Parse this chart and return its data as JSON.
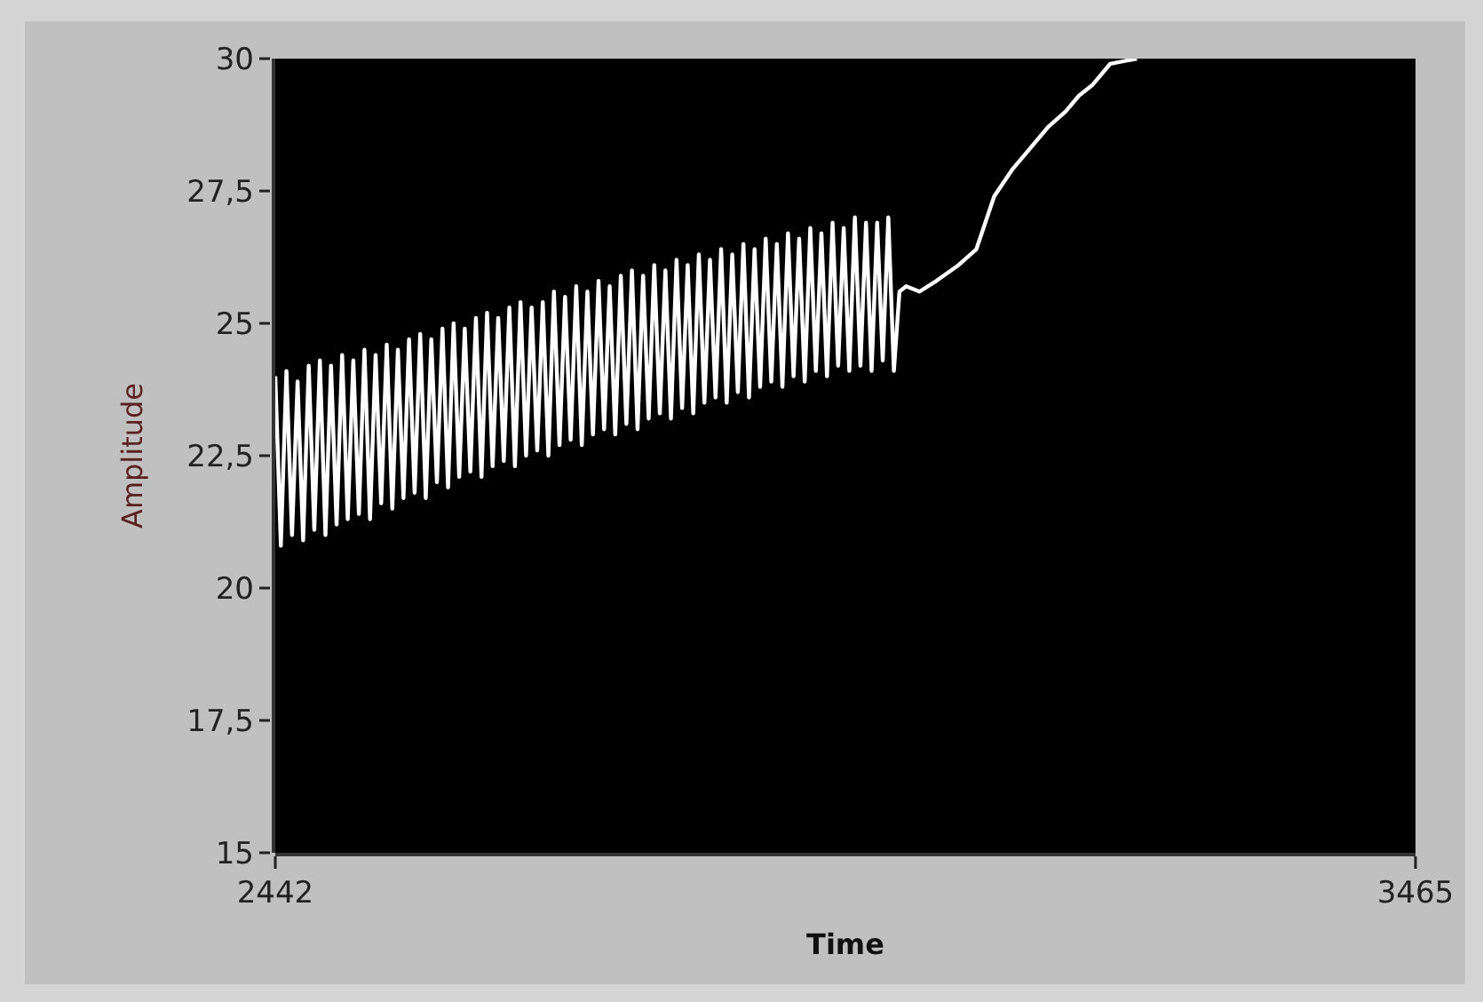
{
  "chart_data": {
    "type": "line",
    "xlabel": "Time",
    "ylabel": "Amplitude",
    "xlim": [
      2442,
      3465
    ],
    "xticks": [
      2442,
      3465
    ],
    "ylim": [
      15,
      30
    ],
    "yticks": [
      15,
      {
        "value": 17.5,
        "label": "17,5"
      },
      20,
      {
        "value": 22.5,
        "label": "22,5"
      },
      25,
      {
        "value": 27.5,
        "label": "27,5"
      },
      30
    ],
    "grid": false,
    "series": [
      {
        "color": "#ffffff",
        "x": [
          2442,
          2447,
          2452,
          2457,
          2462,
          2467,
          2472,
          2477,
          2482,
          2487,
          2492,
          2497,
          2502,
          2507,
          2512,
          2517,
          2522,
          2527,
          2532,
          2537,
          2542,
          2547,
          2552,
          2557,
          2562,
          2567,
          2572,
          2577,
          2582,
          2587,
          2592,
          2597,
          2602,
          2607,
          2612,
          2617,
          2622,
          2627,
          2632,
          2637,
          2642,
          2647,
          2652,
          2657,
          2662,
          2667,
          2672,
          2677,
          2682,
          2687,
          2692,
          2697,
          2702,
          2707,
          2712,
          2717,
          2722,
          2727,
          2732,
          2737,
          2742,
          2747,
          2752,
          2757,
          2762,
          2767,
          2772,
          2777,
          2782,
          2787,
          2792,
          2797,
          2802,
          2807,
          2812,
          2817,
          2822,
          2827,
          2832,
          2837,
          2842,
          2847,
          2852,
          2857,
          2862,
          2867,
          2872,
          2877,
          2882,
          2887,
          2892,
          2897,
          2902,
          2907,
          2912,
          2917,
          2922,
          2927,
          2932,
          2937,
          2942,
          2947,
          2952,
          2957,
          2962,
          2967,
          2972,
          2977,
          2982,
          2987,
          2992,
          2997,
          3002,
          3008,
          3020,
          3035,
          3055,
          3071,
          3087,
          3103,
          3119,
          3135,
          3151,
          3163,
          3175,
          3191,
          3215
        ],
        "values": [
          24.0,
          20.8,
          24.1,
          21.0,
          23.9,
          20.9,
          24.2,
          21.1,
          24.3,
          21.0,
          24.2,
          21.2,
          24.4,
          21.3,
          24.3,
          21.4,
          24.5,
          21.3,
          24.4,
          21.6,
          24.6,
          21.5,
          24.5,
          21.7,
          24.7,
          21.8,
          24.8,
          21.7,
          24.7,
          22.0,
          24.9,
          21.9,
          25.0,
          22.1,
          24.9,
          22.2,
          25.1,
          22.1,
          25.2,
          22.3,
          25.1,
          22.4,
          25.3,
          22.3,
          25.4,
          22.5,
          25.3,
          22.6,
          25.4,
          22.5,
          25.6,
          22.7,
          25.5,
          22.8,
          25.7,
          22.7,
          25.6,
          22.9,
          25.8,
          23.0,
          25.7,
          22.9,
          25.9,
          23.1,
          26.0,
          23.0,
          25.9,
          23.2,
          26.1,
          23.3,
          26.0,
          23.2,
          26.2,
          23.4,
          26.1,
          23.3,
          26.3,
          23.5,
          26.2,
          23.6,
          26.4,
          23.5,
          26.3,
          23.7,
          26.5,
          23.6,
          26.4,
          23.8,
          26.6,
          23.9,
          26.5,
          23.8,
          26.7,
          24.0,
          26.6,
          23.9,
          26.8,
          24.1,
          26.7,
          24.0,
          26.9,
          24.2,
          26.8,
          24.1,
          27.0,
          24.2,
          26.9,
          24.1,
          26.9,
          24.3,
          27.0,
          24.1,
          25.6,
          25.7,
          25.6,
          25.8,
          26.1,
          26.4,
          27.4,
          27.9,
          28.3,
          28.7,
          29.0,
          29.3,
          29.5,
          29.9,
          30.0
        ]
      }
    ]
  }
}
